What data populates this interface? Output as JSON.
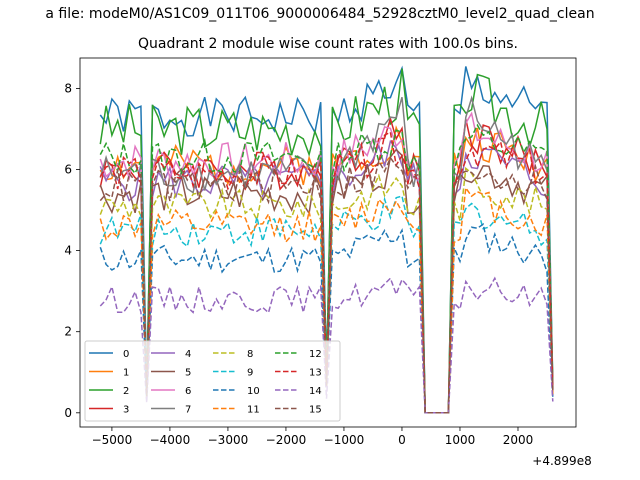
{
  "figure": {
    "suptitle": "a file: modeM0/AS1C09_011T06_9000006484_52928cztM0_level2_quad_clean",
    "offset_text": "+4.899e8"
  },
  "chart_data": {
    "type": "line",
    "title": "Quadrant 2 module wise count rates with 100.0s bins.",
    "xlabel": "",
    "ylabel": "",
    "xlim": [
      -5550,
      3000
    ],
    "ylim": [
      -0.35,
      8.75
    ],
    "x_ticks": [
      -5000,
      -4000,
      -3000,
      -2000,
      -1000,
      0,
      1000,
      2000
    ],
    "x_tick_labels": [
      "−5000",
      "−4000",
      "−3000",
      "−2000",
      "−1000",
      "0",
      "1000",
      "2000"
    ],
    "y_ticks": [
      0,
      2,
      4,
      6,
      8
    ],
    "y_tick_labels": [
      "0",
      "2",
      "4",
      "6",
      "8"
    ],
    "grid": false,
    "legend_position": "lower-left",
    "legend_columns": 4,
    "shape": {
      "segments": [
        {
          "x_start": -5200,
          "x_end": -4600
        },
        {
          "x_start": -4200,
          "x_end": -1400
        },
        {
          "x_start": -1200,
          "x_end": 0
        },
        {
          "x_start": 1100,
          "x_end": 2500
        }
      ],
      "gaps": [
        {
          "x_start": -4500,
          "x_end": -4300,
          "min_level": 0.2
        },
        {
          "x_start": -1400,
          "x_end": -1250,
          "min_level": 0.35
        },
        {
          "x_start": 300,
          "x_end": 900,
          "min_level": 0
        }
      ],
      "end_x": 2600,
      "end_drop_factor": 0.1
    },
    "series": [
      {
        "name": "0",
        "color": "#1f77b4",
        "dash": "solid",
        "level": 7.3,
        "noise": 0.22,
        "end_level": 8.2,
        "seed": 1
      },
      {
        "name": "1",
        "color": "#ff7f0e",
        "dash": "solid",
        "level": 6.1,
        "noise": 0.22,
        "end_level": 6.8,
        "seed": 2
      },
      {
        "name": "2",
        "color": "#2ca02c",
        "dash": "solid",
        "level": 7.0,
        "noise": 0.3,
        "end_level": 7.9,
        "seed": 3
      },
      {
        "name": "3",
        "color": "#d62728",
        "dash": "solid",
        "level": 6.0,
        "noise": 0.22,
        "end_level": 7.0,
        "seed": 4
      },
      {
        "name": "4",
        "color": "#9467bd",
        "dash": "solid",
        "level": 5.7,
        "noise": 0.22,
        "end_level": 6.5,
        "seed": 5
      },
      {
        "name": "5",
        "color": "#8c564b",
        "dash": "solid",
        "level": 5.4,
        "noise": 0.22,
        "end_level": 6.2,
        "seed": 6
      },
      {
        "name": "6",
        "color": "#e377c2",
        "dash": "solid",
        "level": 6.2,
        "noise": 0.22,
        "end_level": 7.0,
        "seed": 7
      },
      {
        "name": "7",
        "color": "#7f7f7f",
        "dash": "solid",
        "level": 5.9,
        "noise": 0.22,
        "end_level": 7.5,
        "seed": 8
      },
      {
        "name": "8",
        "color": "#bcbd22",
        "dash": "dashed",
        "level": 5.1,
        "noise": 0.18,
        "end_level": 5.7,
        "seed": 9
      },
      {
        "name": "9",
        "color": "#17becf",
        "dash": "dashed",
        "level": 4.5,
        "noise": 0.18,
        "end_level": 5.0,
        "seed": 10
      },
      {
        "name": "10",
        "color": "#1f77b4",
        "dash": "dashed",
        "level": 3.8,
        "noise": 0.16,
        "end_level": 4.5,
        "seed": 11
      },
      {
        "name": "11",
        "color": "#ff7f0e",
        "dash": "dashed",
        "level": 4.6,
        "noise": 0.18,
        "end_level": 5.3,
        "seed": 12
      },
      {
        "name": "12",
        "color": "#2ca02c",
        "dash": "dashed",
        "level": 6.3,
        "noise": 0.2,
        "end_level": 6.8,
        "seed": 13
      },
      {
        "name": "13",
        "color": "#d62728",
        "dash": "dashed",
        "level": 5.9,
        "noise": 0.2,
        "end_level": 6.6,
        "seed": 14
      },
      {
        "name": "14",
        "color": "#9467bd",
        "dash": "dashed",
        "level": 2.8,
        "noise": 0.15,
        "end_level": 3.1,
        "seed": 15
      },
      {
        "name": "15",
        "color": "#8c564b",
        "dash": "dashed",
        "level": 5.6,
        "noise": 0.2,
        "end_level": 6.1,
        "seed": 16
      }
    ]
  }
}
